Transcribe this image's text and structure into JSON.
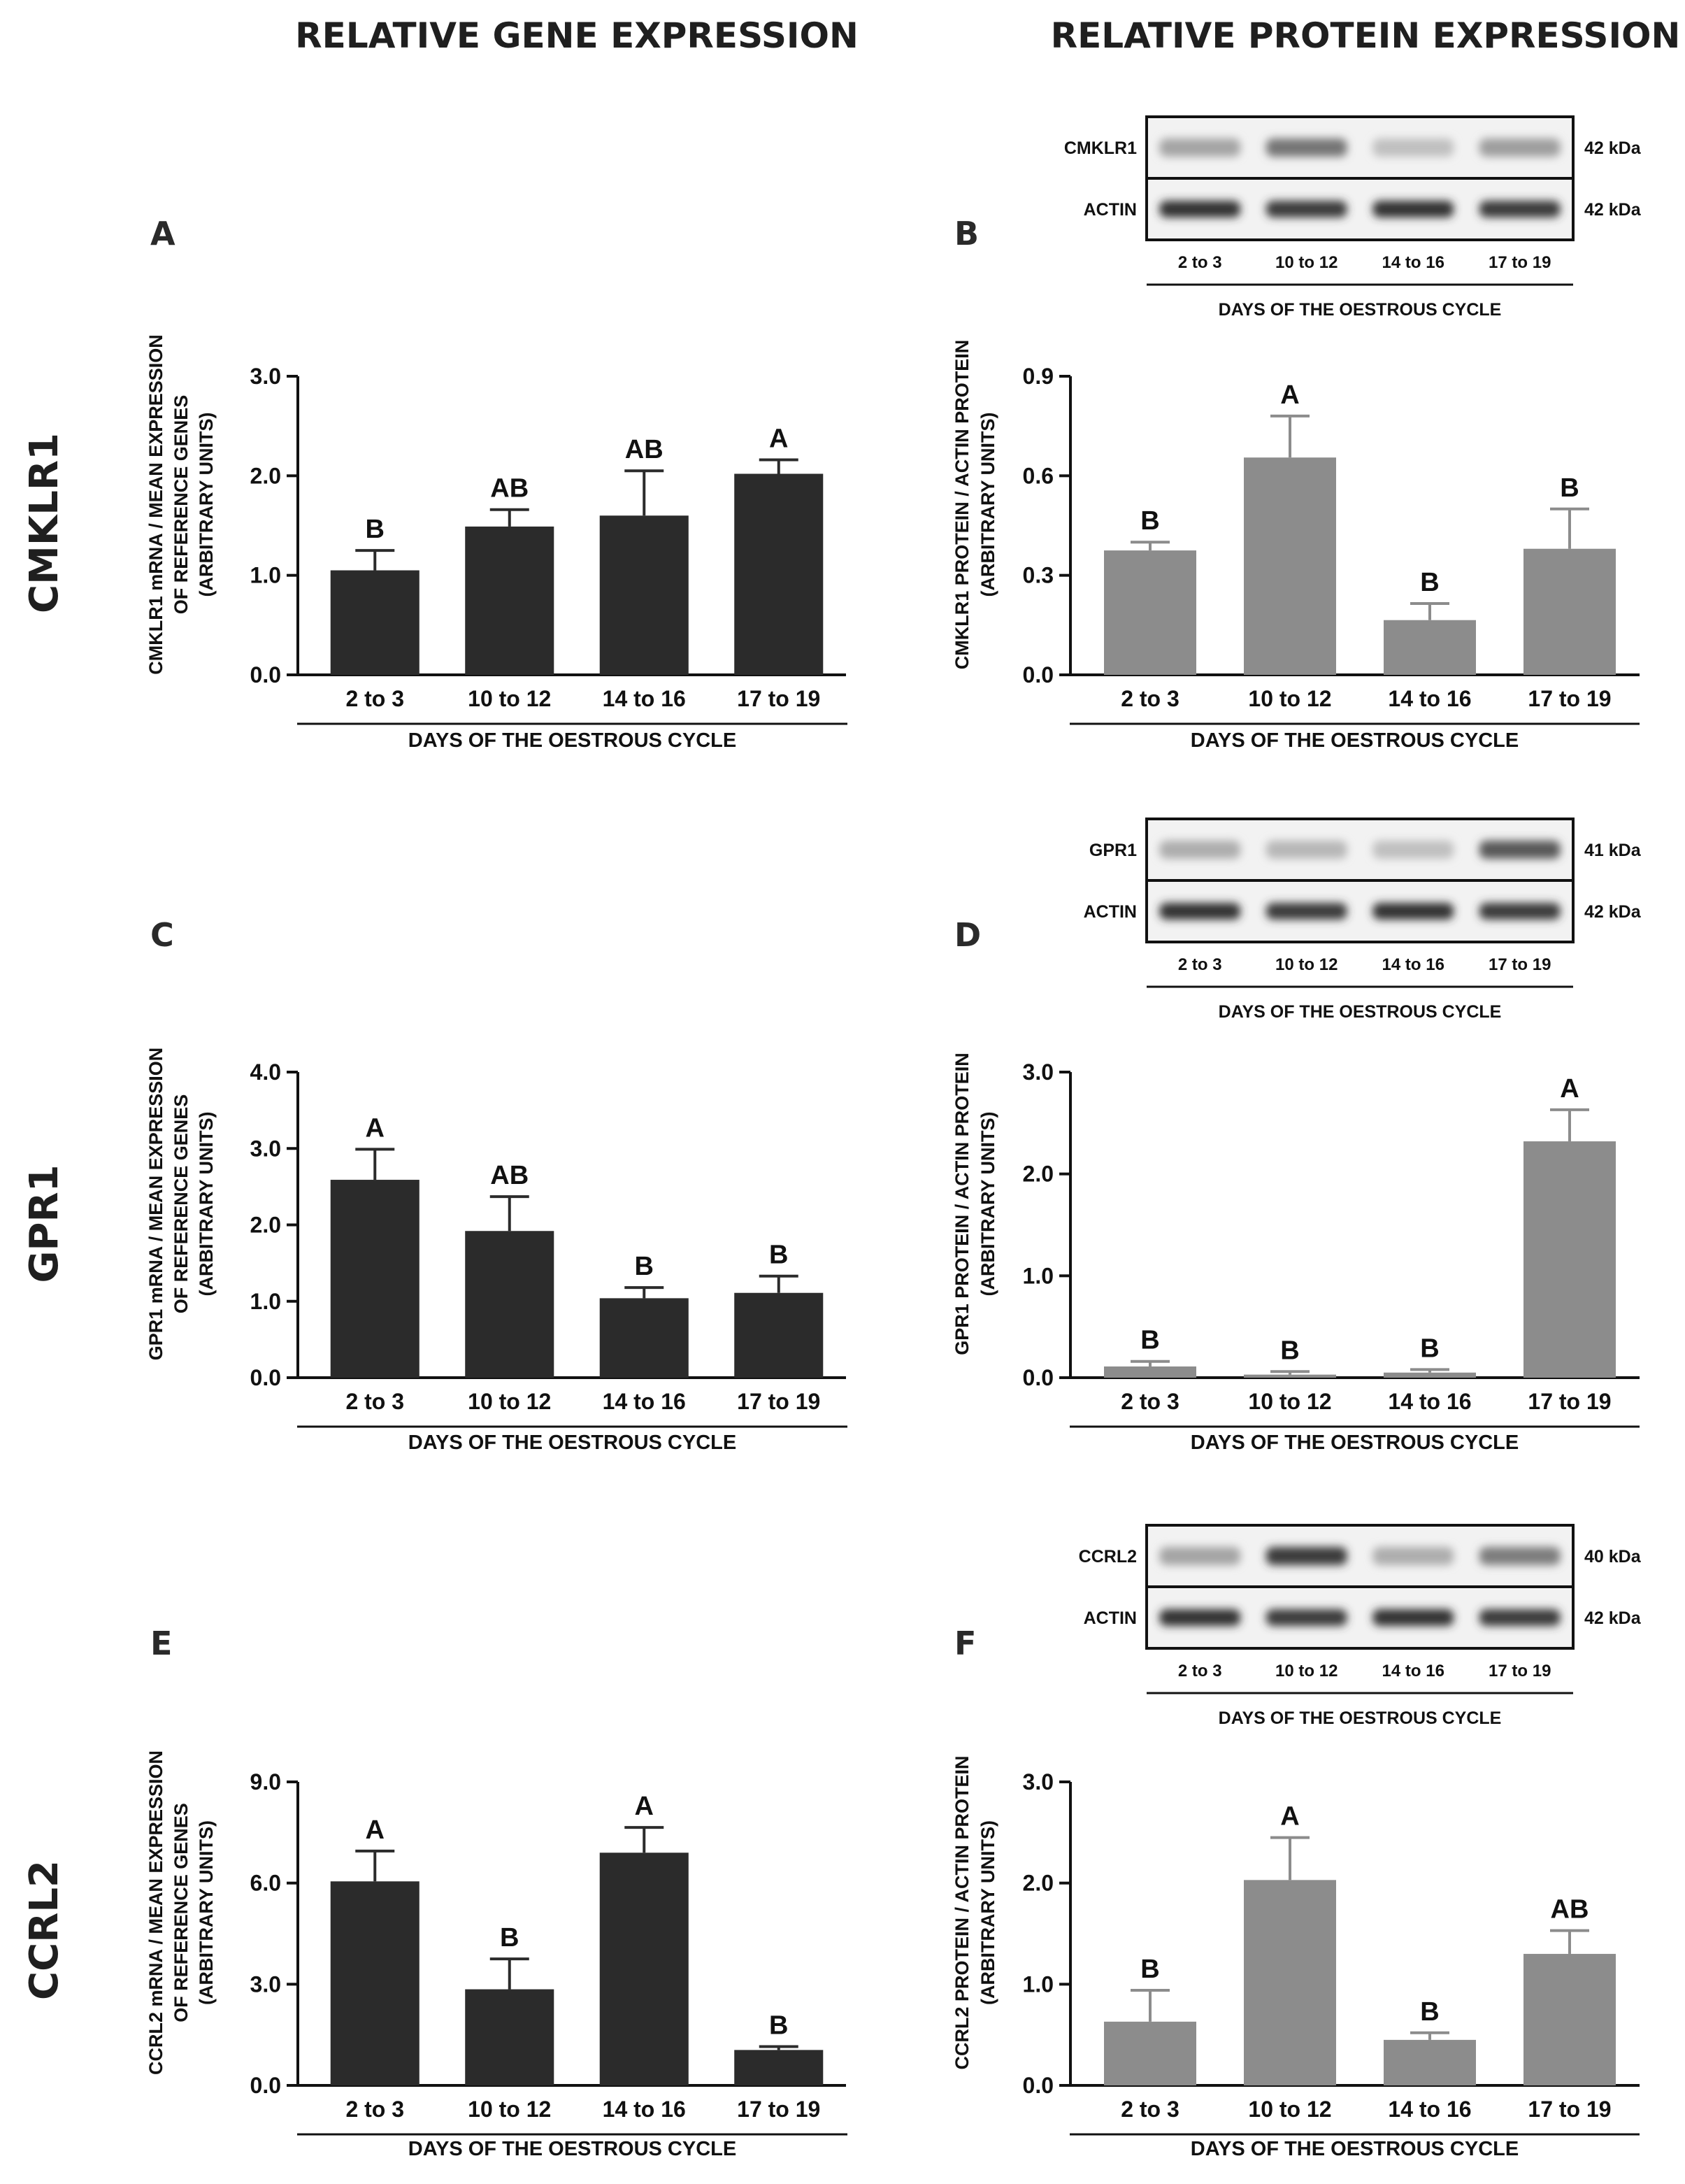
{
  "header": {
    "gene_title": "RELATIVE GENE EXPRESSION",
    "protein_title": "RELATIVE PROTEIN EXPRESSION"
  },
  "rows": [
    "CMKLR1",
    "GPR1",
    "CCRL2"
  ],
  "colors": {
    "gene_bar": "#2b2b2b",
    "protein_bar": "#8c8c8c",
    "axis": "#111111"
  },
  "chart_data": [
    {
      "panel": "A",
      "type": "bar",
      "categories": [
        "2 to 3",
        "10 to 12",
        "14 to 16",
        "17 to 19"
      ],
      "values": [
        1.05,
        1.49,
        1.6,
        2.02
      ],
      "errors": [
        0.2,
        0.17,
        0.45,
        0.14
      ],
      "sig": [
        "B",
        "AB",
        "AB",
        "A"
      ],
      "ylim": [
        0,
        3
      ],
      "yticks": [
        "0.0",
        "1.0",
        "2.0",
        "3.0"
      ],
      "ylabel": [
        "CMKLR1 mRNA / MEAN EXPRESSION",
        "OF REFERENCE GENES",
        "(ARBITRARY UNITS)"
      ],
      "xlabel": "DAYS OF THE OESTROUS CYCLE"
    },
    {
      "panel": "B",
      "type": "bar",
      "categories": [
        "2 to 3",
        "10 to 12",
        "14 to 16",
        "17 to 19"
      ],
      "values": [
        0.375,
        0.655,
        0.165,
        0.38
      ],
      "errors": [
        0.025,
        0.125,
        0.05,
        0.12
      ],
      "sig": [
        "B",
        "A",
        "B",
        "B"
      ],
      "ylim": [
        0,
        0.9
      ],
      "yticks": [
        "0.0",
        "0.3",
        "0.6",
        "0.9"
      ],
      "ylabel": [
        "CMKLR1 PROTEIN / ACTIN PROTEIN",
        "(ARBITRARY UNITS)"
      ],
      "xlabel": "DAYS OF THE OESTROUS CYCLE"
    },
    {
      "panel": "C",
      "type": "bar",
      "categories": [
        "2 to 3",
        "10 to 12",
        "14 to 16",
        "17 to 19"
      ],
      "values": [
        2.59,
        1.92,
        1.04,
        1.11
      ],
      "errors": [
        0.4,
        0.45,
        0.14,
        0.22
      ],
      "sig": [
        "A",
        "AB",
        "B",
        "B"
      ],
      "ylim": [
        0,
        4
      ],
      "yticks": [
        "0.0",
        "1.0",
        "2.0",
        "3.0",
        "4.0"
      ],
      "ylabel": [
        "GPR1 mRNA / MEAN EXPRESSION",
        "OF REFERENCE GENES",
        "(ARBITRARY UNITS)"
      ],
      "xlabel": "DAYS OF THE OESTROUS CYCLE"
    },
    {
      "panel": "D",
      "type": "bar",
      "categories": [
        "2 to 3",
        "10 to 12",
        "14 to 16",
        "17 to 19"
      ],
      "values": [
        0.11,
        0.03,
        0.05,
        2.32
      ],
      "errors": [
        0.05,
        0.03,
        0.03,
        0.31
      ],
      "sig": [
        "B",
        "B",
        "B",
        "A"
      ],
      "ylim": [
        0,
        3
      ],
      "yticks": [
        "0.0",
        "1.0",
        "2.0",
        "3.0"
      ],
      "ylabel": [
        "GPR1 PROTEIN / ACTIN PROTEIN",
        "(ARBITRARY UNITS)"
      ],
      "xlabel": "DAYS OF THE OESTROUS CYCLE"
    },
    {
      "panel": "E",
      "type": "bar",
      "categories": [
        "2 to 3",
        "10 to 12",
        "14 to 16",
        "17 to 19"
      ],
      "values": [
        6.05,
        2.85,
        6.9,
        1.05
      ],
      "errors": [
        0.9,
        0.9,
        0.75,
        0.1
      ],
      "sig": [
        "A",
        "B",
        "A",
        "B"
      ],
      "ylim": [
        0,
        9
      ],
      "yticks": [
        "0.0",
        "3.0",
        "6.0",
        "9.0"
      ],
      "ylabel": [
        "CCRL2 mRNA / MEAN EXPRESSION",
        "OF REFERENCE GENES",
        "(ARBITRARY UNITS)"
      ],
      "xlabel": "DAYS OF THE OESTROUS CYCLE"
    },
    {
      "panel": "F",
      "type": "bar",
      "categories": [
        "2 to 3",
        "10 to 12",
        "14 to 16",
        "17 to 19"
      ],
      "values": [
        0.63,
        2.03,
        0.45,
        1.3
      ],
      "errors": [
        0.31,
        0.42,
        0.07,
        0.23
      ],
      "sig": [
        "B",
        "A",
        "B",
        "AB"
      ],
      "ylim": [
        0,
        3
      ],
      "yticks": [
        "0.0",
        "1.0",
        "2.0",
        "3.0"
      ],
      "ylabel": [
        "CCRL2 PROTEIN / ACTIN PROTEIN",
        "(ARBITRARY UNITS)"
      ],
      "xlabel": "DAYS OF THE OESTROUS CYCLE"
    }
  ],
  "blots": [
    {
      "target": "CMKLR1",
      "target_kda": "42 kDa",
      "control": "ACTIN",
      "control_kda": "42 kDa",
      "lanes": [
        "2 to 3",
        "10 to 12",
        "14 to 16",
        "17 to 19"
      ],
      "target_intensity": [
        0.35,
        0.6,
        0.2,
        0.38
      ],
      "control_intensity": [
        0.95,
        0.9,
        0.95,
        0.9
      ],
      "xlabel": "DAYS OF THE OESTROUS CYCLE"
    },
    {
      "target": "GPR1",
      "target_kda": "41 kDa",
      "control": "ACTIN",
      "control_kda": "42 kDa",
      "lanes": [
        "2 to 3",
        "10 to 12",
        "14 to 16",
        "17 to 19"
      ],
      "target_intensity": [
        0.3,
        0.25,
        0.2,
        0.75
      ],
      "control_intensity": [
        0.95,
        0.9,
        0.95,
        0.9
      ],
      "xlabel": "DAYS OF THE OESTROUS CYCLE"
    },
    {
      "target": "CCRL2",
      "target_kda": "40 kDa",
      "control": "ACTIN",
      "control_kda": "42 kDa",
      "lanes": [
        "2 to 3",
        "10 to 12",
        "14 to 16",
        "17 to 19"
      ],
      "target_intensity": [
        0.35,
        0.9,
        0.3,
        0.55
      ],
      "control_intensity": [
        0.95,
        0.9,
        0.95,
        0.9
      ],
      "xlabel": "DAYS OF THE OESTROUS CYCLE"
    }
  ]
}
